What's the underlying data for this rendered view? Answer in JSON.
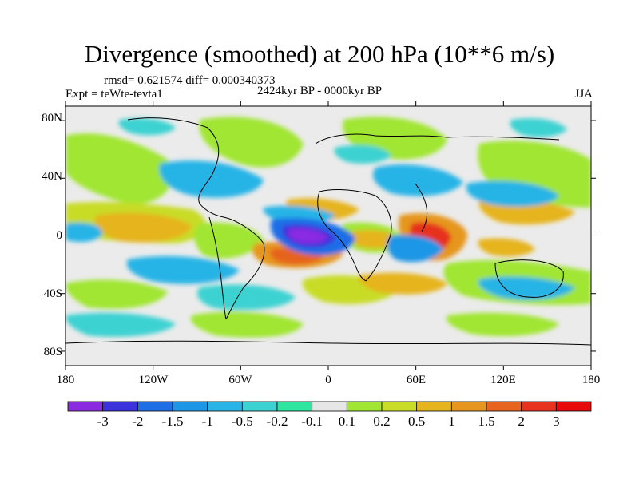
{
  "title": "Divergence (smoothed) at 200 hPa (10**6 m/s)",
  "stats": "rmsd= 0.621574 diff= 0.000340373",
  "expt": "Expt = teWte-tevta1",
  "period": "2424kyr BP - 0000kyr BP",
  "season": "JJA",
  "lat_labels": [
    "80N",
    "40N",
    "0",
    "40S",
    "80S"
  ],
  "lon_labels": [
    "180",
    "120W",
    "60W",
    "0",
    "60E",
    "120E",
    "180"
  ],
  "colorbar": {
    "labels": [
      "-3",
      "-2",
      "-1.5",
      "-1",
      "-0.5",
      "-0.2",
      "-0.1",
      "0.1",
      "0.2",
      "0.5",
      "1",
      "1.5",
      "2",
      "3"
    ],
    "colors": [
      "#8a2be2",
      "#3c32dc",
      "#1e6ee6",
      "#1e96e6",
      "#28b4e6",
      "#3cd2d2",
      "#2ee6a0",
      "#e6e6e6",
      "#a0e632",
      "#c8dc28",
      "#e6b41e",
      "#e6961e",
      "#e6641e",
      "#e6321e",
      "#e60a0a"
    ]
  },
  "land_color": "#ebebeb",
  "anomaly_features": [
    {
      "name": "mid-atlantic-divergence-minimum",
      "level": -3
    },
    {
      "name": "arabian-sea-divergence-maximum",
      "level": 3
    }
  ]
}
